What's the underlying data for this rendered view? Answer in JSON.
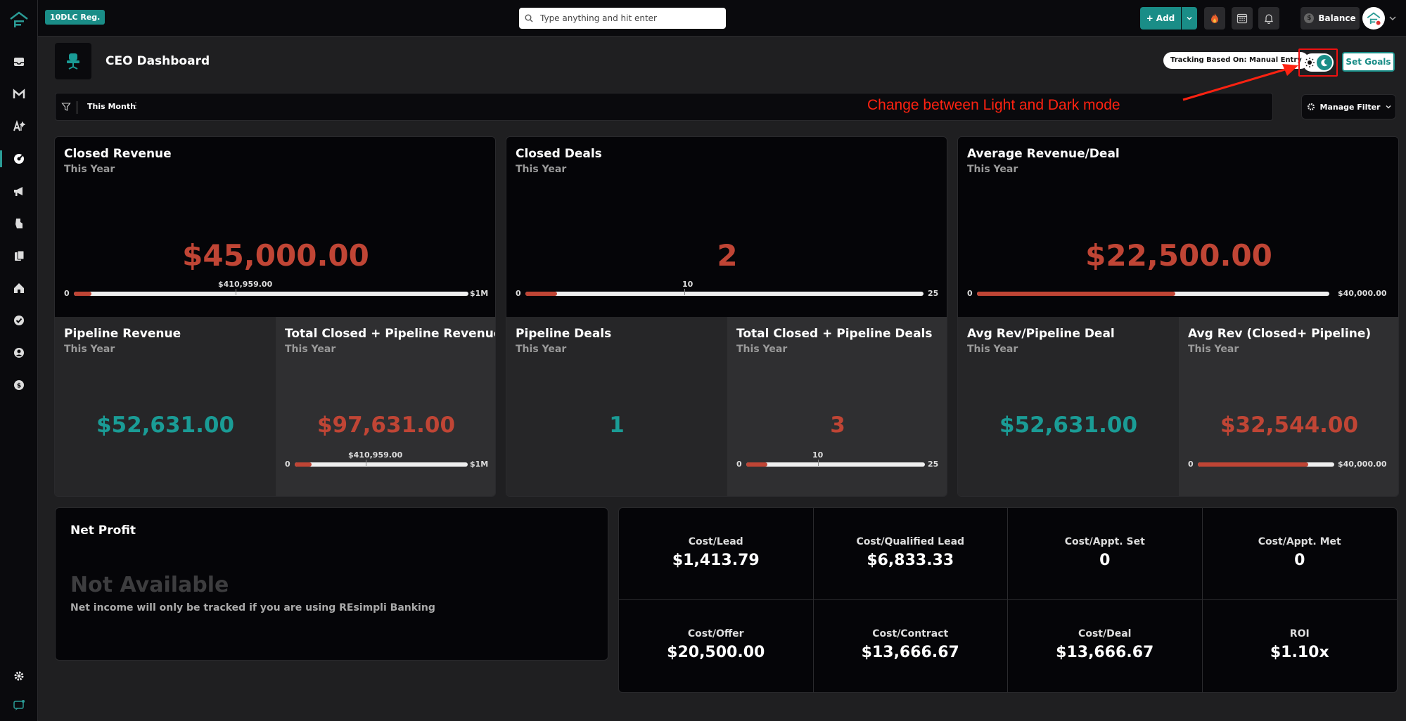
{
  "topbar": {
    "badge": "10DLC Reg.",
    "search_placeholder": "Type anything and hit enter",
    "add_label": "Add",
    "balance_label": "Balance"
  },
  "header": {
    "title": "CEO Dashboard",
    "tracking": "Tracking Based On: Manual Entry",
    "set_goals": "Set Goals",
    "annotation": "Change between Light and Dark mode"
  },
  "filter": {
    "period": "This Month",
    "manage": "Manage Filter"
  },
  "kpis": {
    "closed_revenue": {
      "title": "Closed Revenue",
      "sub": "This Year",
      "value": "$45,000.00",
      "min": "0",
      "max": "$1M",
      "marker": "$410,959.00",
      "progress": 0.045
    },
    "closed_deals": {
      "title": "Closed Deals",
      "sub": "This Year",
      "value": "2",
      "min": "0",
      "max": "25",
      "marker": "10",
      "progress": 0.08
    },
    "avg_rev_deal": {
      "title": "Average Revenue/Deal",
      "sub": "This Year",
      "value": "$22,500.00",
      "min": "0",
      "max": "$40,000.00",
      "progress": 0.5625
    },
    "pipeline_revenue": {
      "title": "Pipeline Revenue",
      "sub": "This Year",
      "value": "$52,631.00"
    },
    "total_closed_pipeline_revenue": {
      "title": "Total Closed + Pipeline Revenue",
      "sub": "This Year",
      "value": "$97,631.00",
      "min": "0",
      "max": "$1M",
      "marker": "$410,959.00",
      "progress": 0.098
    },
    "pipeline_deals": {
      "title": "Pipeline Deals",
      "sub": "This Year",
      "value": "1"
    },
    "total_closed_pipeline_deals": {
      "title": "Total Closed + Pipeline Deals",
      "sub": "This Year",
      "value": "3",
      "min": "0",
      "max": "25",
      "marker": "10",
      "progress": 0.12
    },
    "avg_rev_pipeline_deal": {
      "title": "Avg Rev/Pipeline Deal",
      "sub": "This Year",
      "value": "$52,631.00"
    },
    "avg_rev_closed_pipeline": {
      "title": "Avg Rev (Closed+ Pipeline)",
      "sub": "This Year",
      "value": "$32,544.00",
      "min": "0",
      "max": "$40,000.00",
      "progress": 0.81
    }
  },
  "net_profit": {
    "title": "Net Profit",
    "status": "Not Available",
    "note": "Net income will only be tracked if you are using REsimpli Banking"
  },
  "costs": [
    {
      "label": "Cost/Lead",
      "value": "$1,413.79"
    },
    {
      "label": "Cost/Qualified Lead",
      "value": "$6,833.33"
    },
    {
      "label": "Cost/Appt. Set",
      "value": "0"
    },
    {
      "label": "Cost/Appt. Met",
      "value": "0"
    },
    {
      "label": "Cost/Offer",
      "value": "$20,500.00"
    },
    {
      "label": "Cost/Contract",
      "value": "$13,666.67"
    },
    {
      "label": "Cost/Deal",
      "value": "$13,666.67"
    },
    {
      "label": "ROI",
      "value": "$1.10x"
    }
  ],
  "colors": {
    "accent": "#1a8d87",
    "negative": "#c04535",
    "positive": "#1a9c96",
    "annotation": "#ff2211"
  }
}
